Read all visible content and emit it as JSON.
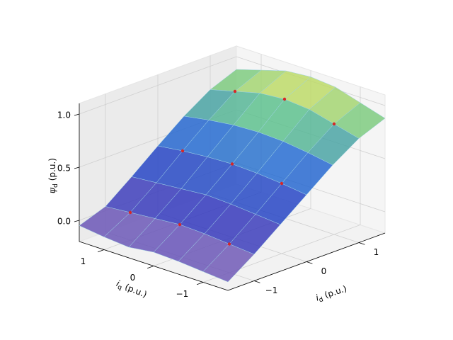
{
  "chart_data": {
    "type": "surface3d",
    "xlabel": {
      "symbol": "i",
      "subscript": "d",
      "unit": "(p.u.)"
    },
    "ylabel": {
      "symbol": "i",
      "subscript": "q",
      "unit": "(p.u.)"
    },
    "zlabel": {
      "symbol": "ψ",
      "subscript": "d",
      "unit": "(p.u.)"
    },
    "xlim": [
      -1.5,
      1.5
    ],
    "ylim": [
      -1.5,
      1.5
    ],
    "zlim": [
      -0.2,
      1.1
    ],
    "xticks": [
      {
        "value": -1,
        "label": "−1"
      },
      0,
      1
    ],
    "yticks": [
      {
        "value": -1,
        "label": "−1"
      },
      0,
      1
    ],
    "zticks": [
      {
        "value": 0,
        "label": "0.0"
      },
      0.5,
      {
        "value": 1,
        "label": "1.0"
      }
    ],
    "surface": {
      "x": [
        -1.5,
        -1,
        -0.5,
        0,
        0.5,
        1,
        1.5
      ],
      "y": [
        -1.5,
        -1,
        -0.5,
        0,
        0.5,
        1,
        1.5
      ],
      "z": [
        [
          -0.12,
          0.05,
          0.24,
          0.43,
          0.62,
          0.78,
          0.88
        ],
        [
          -0.1,
          0.07,
          0.26,
          0.46,
          0.66,
          0.84,
          0.95
        ],
        [
          -0.08,
          0.09,
          0.28,
          0.48,
          0.69,
          0.9,
          1.02
        ],
        [
          -0.07,
          0.1,
          0.29,
          0.49,
          0.7,
          0.92,
          1.04
        ],
        [
          -0.1,
          0.08,
          0.27,
          0.48,
          0.69,
          0.9,
          1.02
        ],
        [
          -0.08,
          0.06,
          0.25,
          0.46,
          0.66,
          0.84,
          0.95
        ],
        [
          -0.05,
          0.04,
          0.23,
          0.43,
          0.62,
          0.78,
          0.88
        ]
      ]
    },
    "scatter": {
      "color": "#d62728",
      "x": [
        -1,
        0,
        1,
        -1,
        0,
        1,
        -1,
        0,
        1
      ],
      "y": [
        -1,
        -1,
        -1,
        0,
        0,
        0,
        1,
        1,
        1
      ],
      "z": [
        0.07,
        0.46,
        0.84,
        0.1,
        0.49,
        0.92,
        0.06,
        0.46,
        0.84
      ]
    }
  }
}
